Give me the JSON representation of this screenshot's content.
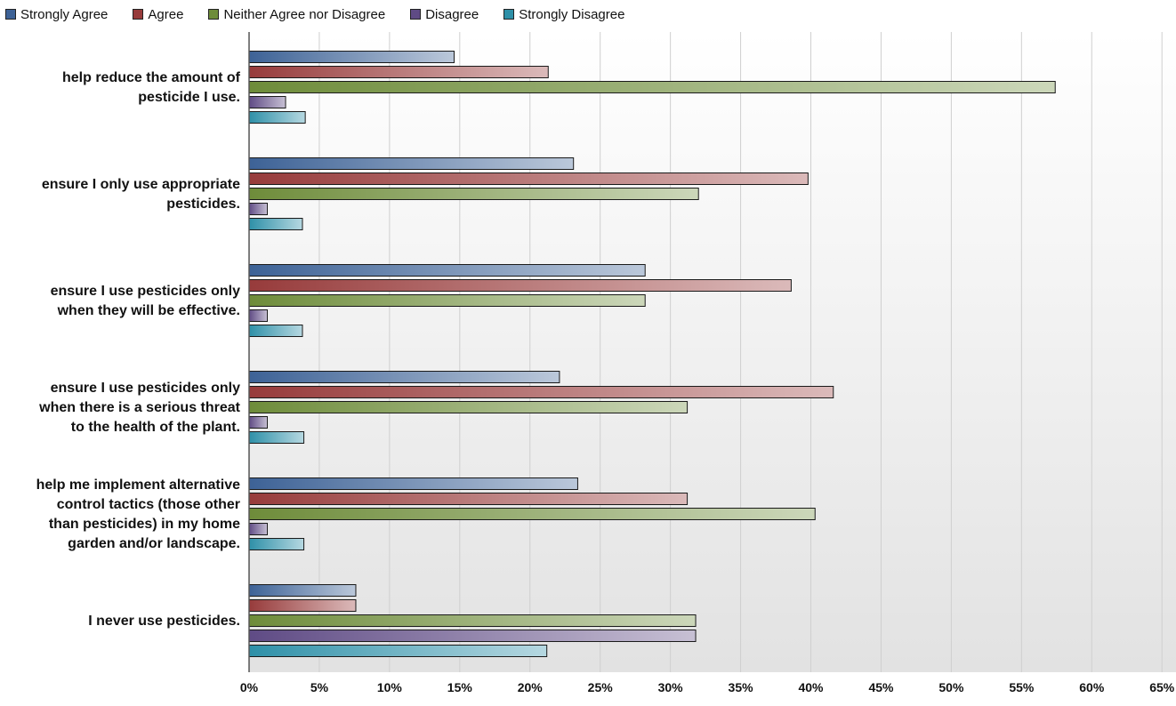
{
  "chart_data": {
    "type": "bar",
    "orientation": "horizontal",
    "title": "",
    "xlabel": "",
    "ylabel": "",
    "xlim": [
      0,
      66
    ],
    "x_ticks": [
      "0%",
      "5%",
      "10%",
      "15%",
      "20%",
      "25%",
      "30%",
      "35%",
      "40%",
      "45%",
      "50%",
      "55%",
      "60%",
      "65%"
    ],
    "legend_position": "top-left",
    "grid": true,
    "categories": [
      [
        "help reduce the amount of",
        "pesticide I use."
      ],
      [
        "ensure I only use appropriate",
        "pesticides."
      ],
      [
        "ensure I use pesticides only",
        "when they will be effective."
      ],
      [
        "ensure I use pesticides only",
        "when there is a serious threat",
        "to the health of the plant."
      ],
      [
        "help me implement alternative",
        "control tactics (those other",
        "than pesticides) in my home",
        "garden and/or landscape."
      ],
      [
        "I never use pesticides."
      ]
    ],
    "series": [
      {
        "name": "Strongly Agree",
        "color": "#3d6296",
        "values": [
          14.6,
          23.1,
          28.2,
          22.1,
          23.4,
          7.6
        ]
      },
      {
        "name": "Agree",
        "color": "#973b3b",
        "values": [
          21.3,
          39.8,
          38.6,
          41.6,
          31.2,
          7.6
        ]
      },
      {
        "name": "Neither Agree nor Disagree",
        "color": "#6e8c3a",
        "values": [
          57.4,
          32.0,
          28.2,
          31.2,
          40.3,
          31.8
        ]
      },
      {
        "name": "Disagree",
        "color": "#5f4b85",
        "values": [
          2.6,
          1.3,
          1.3,
          1.3,
          1.3,
          31.8
        ]
      },
      {
        "name": "Strongly Disagree",
        "color": "#2e90a8",
        "values": [
          4.0,
          3.8,
          3.8,
          3.9,
          3.9,
          21.2
        ]
      }
    ]
  }
}
